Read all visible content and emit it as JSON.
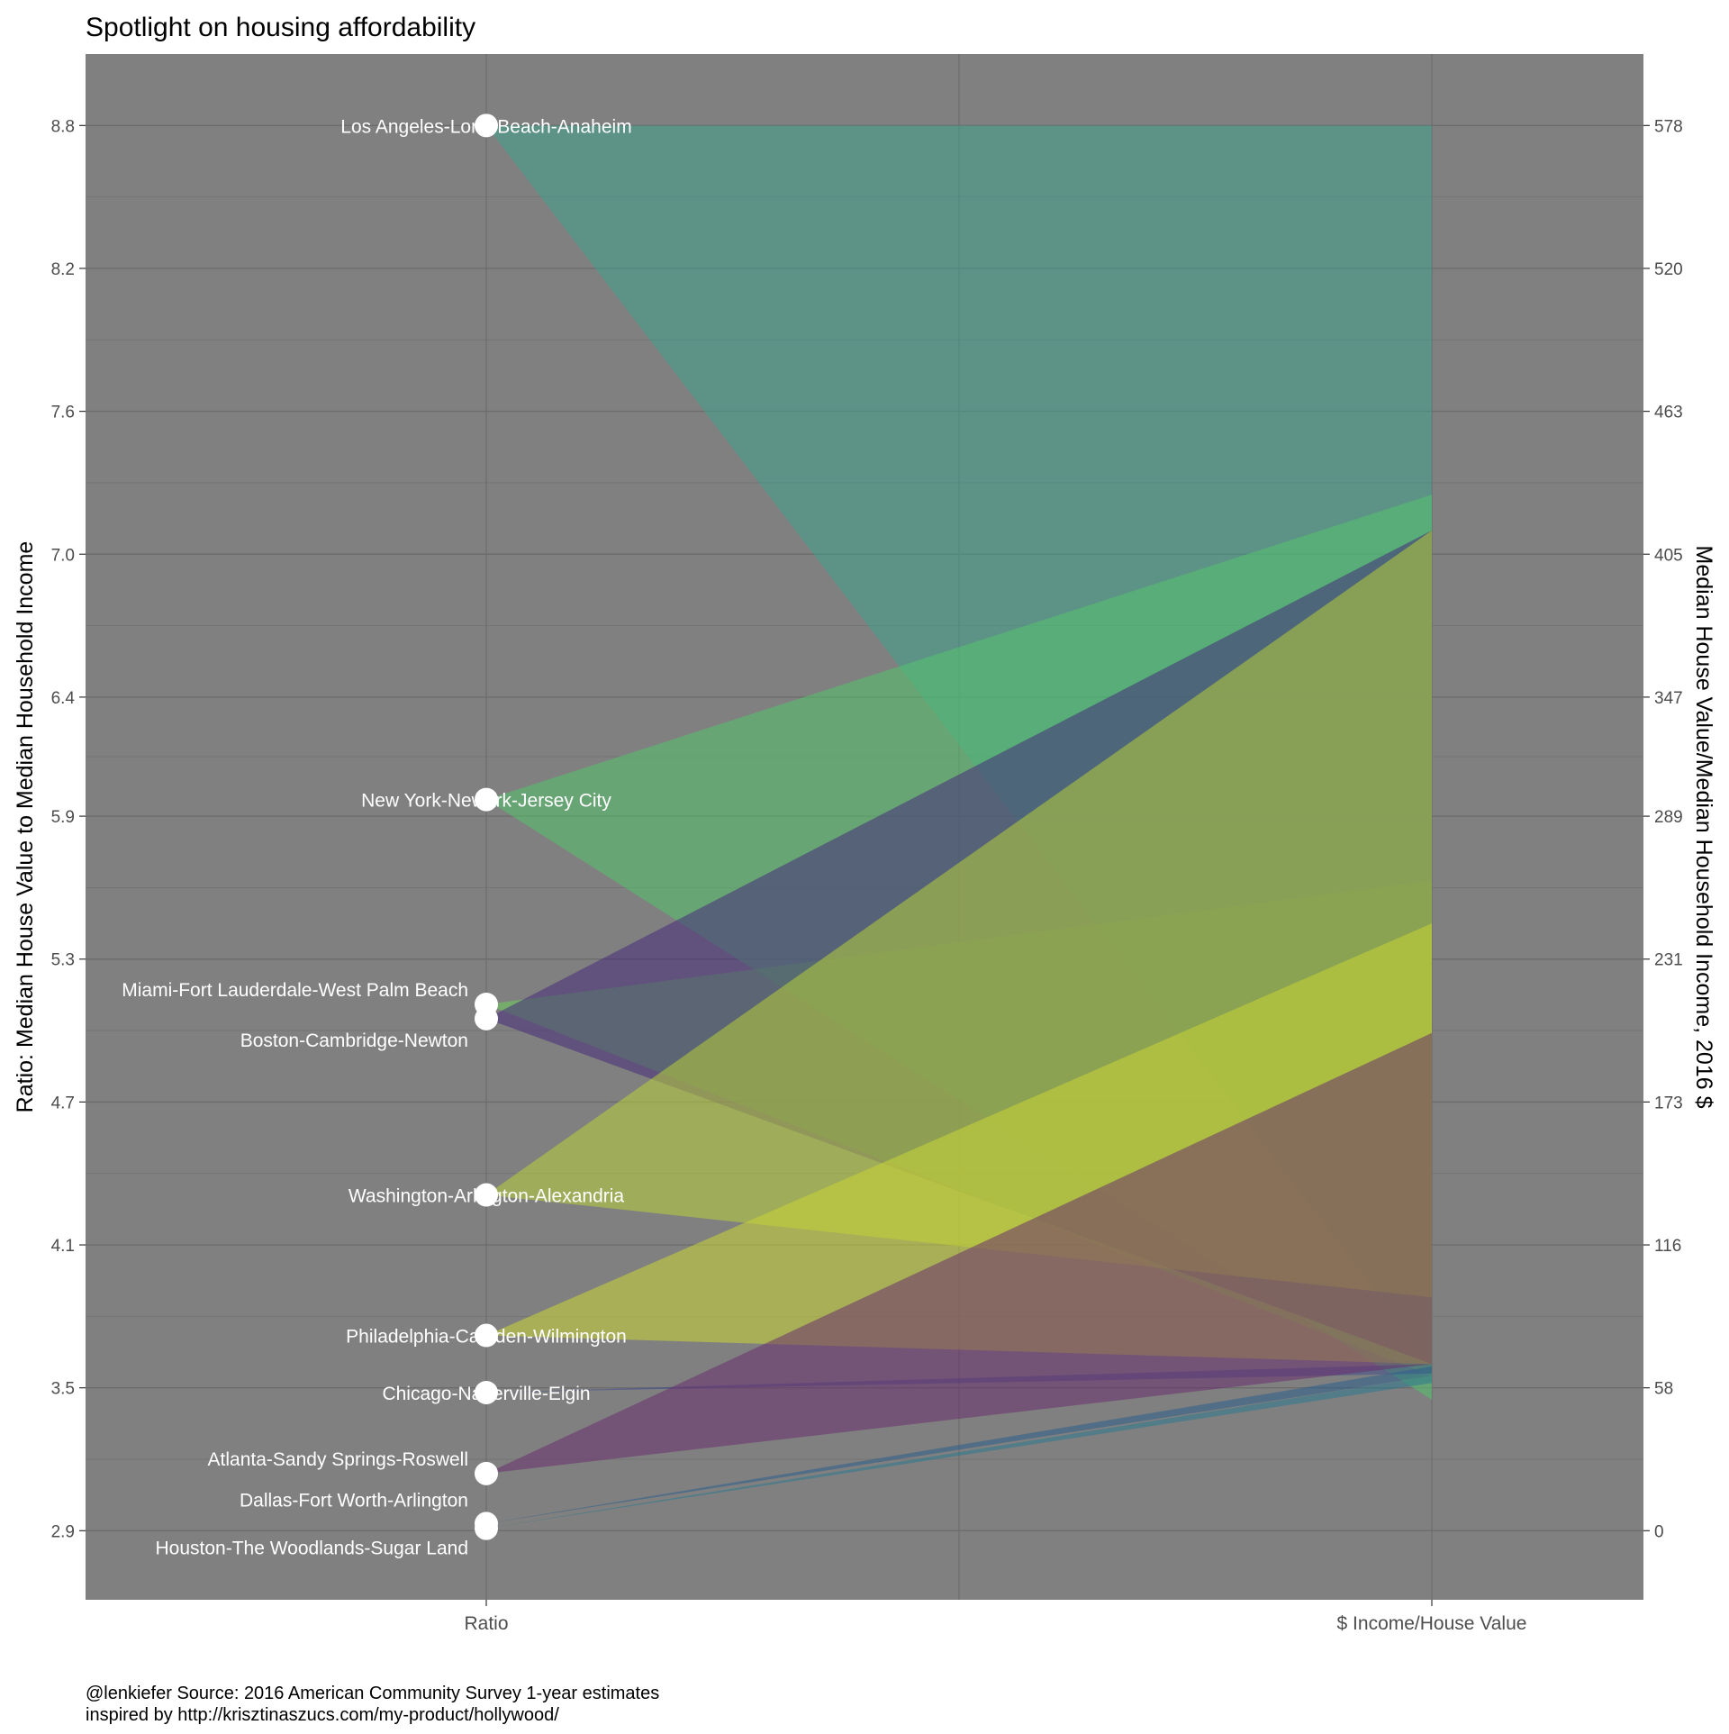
{
  "chart_data": {
    "type": "area",
    "title": "Spotlight on housing affordability",
    "ylabel_left": "Ratio: Median House Value to Median Household Income",
    "ylabel_right": "Median House Value/Median Household Income, 2016 $",
    "x_categories": [
      "Ratio",
      "$ Income/House Value"
    ],
    "y_left_ticks": [
      "2.9",
      "3.5",
      "4.1",
      "4.7",
      "5.3",
      "5.9",
      "6.4",
      "7.0",
      "7.6",
      "8.2",
      "8.8"
    ],
    "y_left_range": [
      2.61,
      9.1
    ],
    "y_right_ticks": [
      "0",
      "58",
      "116",
      "173",
      "231",
      "289",
      "347",
      "405",
      "463",
      "520",
      "578"
    ],
    "grid": true,
    "panel_background": "#808080",
    "point_color": "#ffffff",
    "series": [
      {
        "name": "Los Angeles-Long Beach-Anaheim",
        "ratio": 8.8,
        "band_top": 8.8,
        "band_bottom": 3.6,
        "color": "#3fa08c",
        "label_side": "right"
      },
      {
        "name": "New York-Newark-Jersey City",
        "ratio": 5.97,
        "band_top": 7.25,
        "band_bottom": 3.45,
        "color": "#54c36c",
        "label_side": "right"
      },
      {
        "name": "Miami-Fort Lauderdale-West Palm Beach",
        "ratio": 5.11,
        "band_top": 5.63,
        "band_bottom": 3.55,
        "color": "#6ccd5a",
        "label_side": "left"
      },
      {
        "name": "Boston-Cambridge-Newton",
        "ratio": 5.05,
        "band_top": 7.1,
        "band_bottom": 3.6,
        "color": "#472c7a",
        "label_side": "left"
      },
      {
        "name": "Washington-Arlington-Alexandria",
        "ratio": 4.31,
        "band_top": 7.1,
        "band_bottom": 3.88,
        "color": "#b8cf3a",
        "label_side": "right"
      },
      {
        "name": "Philadelphia-Camden-Wilmington",
        "ratio": 3.72,
        "band_top": 5.45,
        "band_bottom": 3.6,
        "color": "#c8d634",
        "label_side": "right"
      },
      {
        "name": "Chicago-Naperville-Elgin",
        "ratio": 3.48,
        "band_top": 3.6,
        "band_bottom": 3.56,
        "color": "#3f4c8a",
        "label_side": "right"
      },
      {
        "name": "Atlanta-Sandy Springs-Roswell",
        "ratio": 3.14,
        "band_top": 4.99,
        "band_bottom": 3.6,
        "color": "#6a2f6d",
        "label_side": "left"
      },
      {
        "name": "Dallas-Fort Worth-Arlington",
        "ratio": 2.93,
        "band_top": 3.59,
        "band_bottom": 3.55,
        "color": "#2c5f8c",
        "label_side": "left"
      },
      {
        "name": "Houston-The Woodlands-Sugar Land",
        "ratio": 2.91,
        "band_top": 3.55,
        "band_bottom": 3.52,
        "color": "#2a788e",
        "label_side": "left"
      }
    ],
    "caption_line1": "@lenkiefer Source: 2016 American Community Survey 1-year estimates",
    "caption_line2": "inspired by http://krisztinaszucs.com/my-product/hollywood/"
  }
}
